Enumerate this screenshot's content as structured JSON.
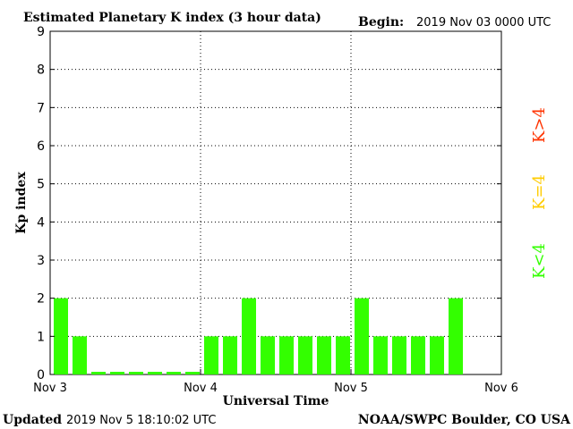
{
  "header": {
    "title": "Estimated Planetary K index (3 hour data)",
    "begin_label": "Begin:",
    "begin_value": "2019 Nov 03 0000 UTC"
  },
  "footer": {
    "updated_label": "Updated",
    "updated_value": "2019 Nov  5 18:10:02 UTC",
    "credit": "NOAA/SWPC Boulder, CO USA"
  },
  "legend": {
    "high": "K>4",
    "equal": "K=4",
    "low": "K<4"
  },
  "colors": {
    "low": "#33ff00",
    "equal": "#ffcc00",
    "high": "#ff3300",
    "axis": "#000000",
    "grid": "#000000"
  },
  "chart_data": {
    "type": "bar",
    "xlabel": "Universal Time",
    "ylabel": "Kp index",
    "ylim": [
      0,
      9
    ],
    "yticks": [
      "0",
      "1",
      "2",
      "3",
      "4",
      "5",
      "6",
      "7",
      "8",
      "9"
    ],
    "xticks": [
      "Nov 3",
      "Nov 4",
      "Nov 5",
      "Nov 6"
    ],
    "grid": true,
    "bars_per_day": 8,
    "values": [
      2,
      1,
      0,
      0,
      0,
      0,
      0,
      0,
      1,
      1,
      2,
      1,
      1,
      1,
      1,
      1,
      2,
      1,
      1,
      1,
      1,
      2
    ]
  }
}
